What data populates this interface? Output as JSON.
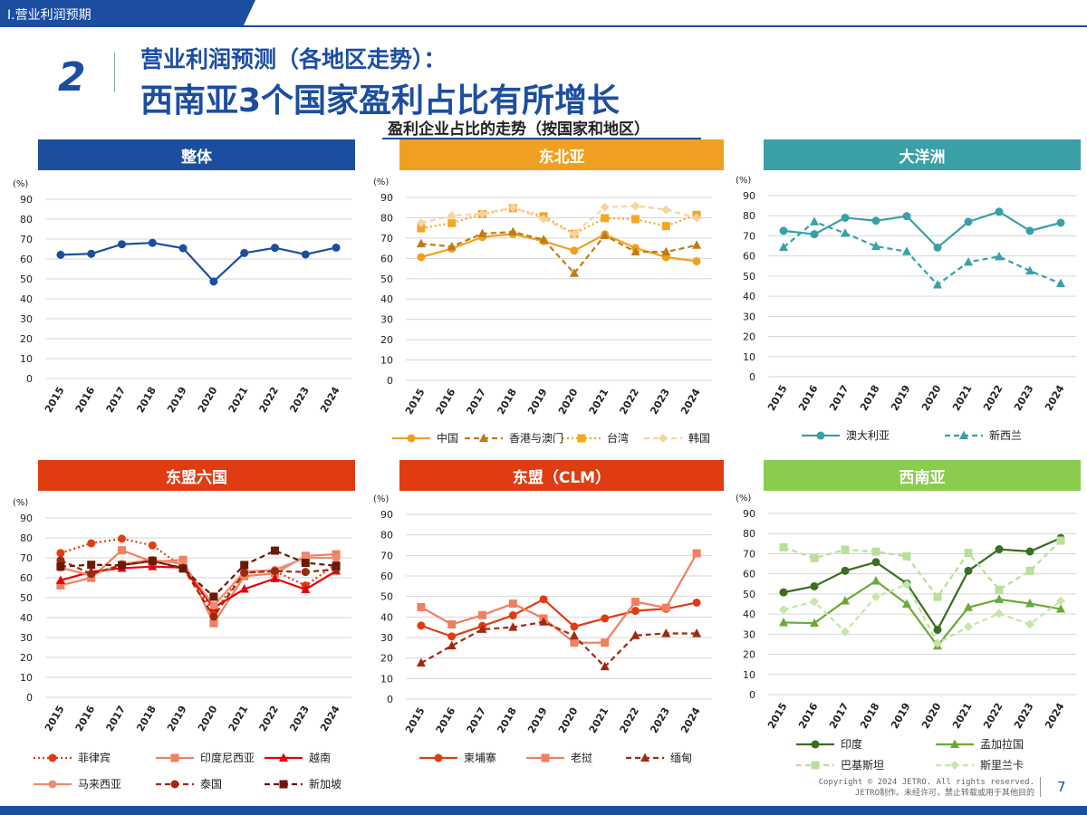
{
  "header": {
    "section_label": "Ⅰ.营业利润预期",
    "number": "2",
    "title_line1": "营业利润预测（各地区走势）：",
    "title_line2": "西南亚3个国家盈利占比有所增长",
    "subtitle": "盈利企业占比的走势（按国家和地区）"
  },
  "footer": {
    "copyright_line1": "Copyright © 2024 JETRO. All rights reserved.",
    "copyright_line2": "JETRO制作。未经许可，禁止转载或用于其他目的",
    "page": "7"
  },
  "colors": {
    "brand": "#1c4ea0"
  },
  "chart_data": [
    {
      "type": "line",
      "title": "整体",
      "header_color": "#1c4ea0",
      "ylabel": "(%)",
      "ylim": [
        0,
        90
      ],
      "yticks": [
        "0",
        "10",
        "20",
        "30",
        "40",
        "50",
        "60",
        "70",
        "80",
        "90"
      ],
      "categories": [
        "2015",
        "2016",
        "2017",
        "2018",
        "2019",
        "2020",
        "2021",
        "2022",
        "2023",
        "2024"
      ],
      "series": [
        {
          "values": [
            62.1,
            62.6,
            67.4,
            68.1,
            65.4,
            48.7,
            63.0,
            65.6,
            62.3,
            65.7
          ],
          "color": "#1c4ea0",
          "dash": "solid",
          "marker": "circle"
        }
      ]
    },
    {
      "type": "line",
      "title": "东北亚",
      "header_color": "#f0a020",
      "ylabel": "(%)",
      "ylim": [
        0,
        90
      ],
      "yticks": [
        "0",
        "10",
        "20",
        "30",
        "40",
        "50",
        "60",
        "70",
        "80",
        "90"
      ],
      "categories": [
        "2015",
        "2016",
        "2017",
        "2018",
        "2019",
        "2020",
        "2021",
        "2022",
        "2023",
        "2024"
      ],
      "series": [
        {
          "name": "中国",
          "values": [
            60.6,
            64.8,
            70.5,
            72.0,
            68.5,
            63.8,
            71.8,
            65.1,
            60.6,
            58.6
          ],
          "color": "#f0a020",
          "dash": "solid",
          "marker": "circle"
        },
        {
          "name": "香港与澳门",
          "values": [
            67.2,
            65.8,
            72.2,
            73.0,
            69.2,
            52.7,
            71.3,
            63.2,
            63.2,
            66.5
          ],
          "color": "#c07c14",
          "dash": "dash",
          "marker": "triangle"
        },
        {
          "name": "台湾",
          "values": [
            74.8,
            77.4,
            81.8,
            84.7,
            80.7,
            72.1,
            79.8,
            79.3,
            75.9,
            81.4
          ],
          "color": "#f5a623",
          "dash": "dot",
          "marker": "square"
        },
        {
          "name": "韩国",
          "values": [
            77.5,
            81.0,
            82.0,
            85.0,
            79.5,
            72.0,
            85.2,
            85.8,
            84.0,
            80.0
          ],
          "color": "#f7d3a0",
          "dash": "dash",
          "marker": "diamond"
        }
      ]
    },
    {
      "type": "line",
      "title": "大洋洲",
      "header_color": "#39a0a8",
      "ylabel": "(%)",
      "ylim": [
        0,
        90
      ],
      "yticks": [
        "0",
        "10",
        "20",
        "30",
        "40",
        "50",
        "60",
        "70",
        "80",
        "90"
      ],
      "categories": [
        "2015",
        "2016",
        "2017",
        "2018",
        "2019",
        "2020",
        "2021",
        "2022",
        "2023",
        "2024"
      ],
      "series": [
        {
          "name": "澳大利亚",
          "values": [
            72.5,
            70.8,
            79.0,
            77.5,
            79.8,
            64.2,
            77.0,
            82.0,
            72.5,
            76.5
          ],
          "color": "#39a0a8",
          "dash": "solid",
          "marker": "circle"
        },
        {
          "name": "新西兰",
          "values": [
            64.3,
            77.0,
            71.3,
            64.8,
            62.2,
            45.7,
            57.0,
            59.7,
            52.6,
            46.3
          ],
          "color": "#39a0a8",
          "dash": "dash",
          "marker": "triangle"
        }
      ]
    },
    {
      "type": "line",
      "title": "东盟六国",
      "header_color": "#e03c12",
      "ylabel": "(%)",
      "ylim": [
        0,
        90
      ],
      "yticks": [
        "0",
        "10",
        "20",
        "30",
        "40",
        "50",
        "60",
        "70",
        "80",
        "90"
      ],
      "categories": [
        "2015",
        "2016",
        "2017",
        "2018",
        "2019",
        "2020",
        "2021",
        "2022",
        "2023",
        "2024"
      ],
      "series": [
        {
          "name": "菲律宾",
          "values": [
            72.4,
            77.3,
            79.6,
            76.2,
            65.3,
            43.0,
            62.6,
            63.3,
            56.1,
            66.8
          ],
          "color": "#e03c12",
          "dash": "dot",
          "marker": "circle"
        },
        {
          "name": "印度尼西亚",
          "values": [
            56.2,
            59.9,
            73.8,
            68.0,
            69.0,
            37.2,
            60.8,
            62.2,
            71.0,
            71.8
          ],
          "color": "#f08060",
          "dash": "solid",
          "marker": "square"
        },
        {
          "name": "越南",
          "values": [
            58.7,
            63.0,
            64.8,
            65.6,
            65.1,
            45.0,
            54.3,
            59.6,
            54.1,
            63.4
          ],
          "color": "#e8000a",
          "dash": "solid",
          "marker": "triangle"
        },
        {
          "name": "马来西亚",
          "values": [
            65.0,
            61.2,
            67.0,
            69.0,
            67.0,
            46.0,
            63.0,
            64.0,
            70.0,
            70.0
          ],
          "color": "#f08a70",
          "dash": "solid",
          "marker": "circle"
        },
        {
          "name": "泰国",
          "values": [
            68.8,
            61.9,
            66.3,
            68.3,
            65.0,
            40.5,
            62.5,
            63.3,
            62.9,
            64.2
          ],
          "color": "#9b2a10",
          "dash": "dash",
          "marker": "circle"
        },
        {
          "name": "新加坡",
          "values": [
            65.6,
            66.5,
            66.3,
            68.5,
            64.6,
            50.5,
            66.4,
            73.6,
            67.5,
            66.0
          ],
          "color": "#6b1a08",
          "dash": "dash",
          "marker": "square"
        }
      ]
    },
    {
      "type": "line",
      "title": "东盟（CLM）",
      "header_color": "#e03c12",
      "ylabel": "(%)",
      "ylim": [
        0,
        90
      ],
      "yticks": [
        "0",
        "10",
        "20",
        "30",
        "40",
        "50",
        "60",
        "70",
        "80",
        "90"
      ],
      "categories": [
        "2015",
        "2016",
        "2017",
        "2018",
        "2019",
        "2020",
        "2021",
        "2022",
        "2023",
        "2024"
      ],
      "series": [
        {
          "name": "柬埔寨",
          "values": [
            35.8,
            30.5,
            35.6,
            40.8,
            48.6,
            35.3,
            39.3,
            43.0,
            44.0,
            47.0
          ],
          "color": "#e03c12",
          "dash": "solid",
          "marker": "circle"
        },
        {
          "name": "老挝",
          "values": [
            44.8,
            36.4,
            40.9,
            46.5,
            39.3,
            27.5,
            27.5,
            47.4,
            44.5,
            71.0
          ],
          "color": "#f08060",
          "dash": "solid",
          "marker": "square"
        },
        {
          "name": "缅甸",
          "values": [
            17.6,
            26.0,
            34.0,
            35.0,
            37.6,
            30.8,
            15.8,
            31.0,
            32.0,
            32.0
          ],
          "color": "#a02a10",
          "dash": "dash",
          "marker": "triangle"
        }
      ]
    },
    {
      "type": "line",
      "title": "西南亚",
      "header_color": "#8acc4e",
      "ylabel": "(%)",
      "ylim": [
        0,
        90
      ],
      "yticks": [
        "0",
        "10",
        "20",
        "30",
        "40",
        "50",
        "60",
        "70",
        "80",
        "90"
      ],
      "categories": [
        "2015",
        "2016",
        "2017",
        "2018",
        "2019",
        "2020",
        "2021",
        "2022",
        "2023",
        "2024"
      ],
      "series": [
        {
          "name": "印度",
          "values": [
            50.8,
            53.8,
            61.5,
            65.8,
            55.2,
            32.2,
            61.5,
            72.2,
            71.1,
            77.8
          ],
          "color": "#3a6e20",
          "dash": "solid",
          "marker": "circle"
        },
        {
          "name": "孟加拉国",
          "values": [
            35.8,
            35.5,
            46.6,
            56.5,
            45.0,
            24.2,
            43.3,
            47.3,
            45.2,
            42.5
          ],
          "color": "#6aaa3a",
          "dash": "solid",
          "marker": "triangle"
        },
        {
          "name": "巴基斯坦",
          "values": [
            73.2,
            67.8,
            72.0,
            71.0,
            68.7,
            48.5,
            70.4,
            52.1,
            61.5,
            76.5
          ],
          "color": "#b8e09a",
          "dash": "dash",
          "marker": "square"
        },
        {
          "name": "斯里兰卡",
          "values": [
            42.2,
            46.2,
            31.2,
            48.6,
            54.8,
            25.5,
            33.7,
            40.2,
            35.0,
            46.5
          ],
          "color": "#c4e6a6",
          "dash": "dash",
          "marker": "diamond"
        }
      ]
    }
  ]
}
